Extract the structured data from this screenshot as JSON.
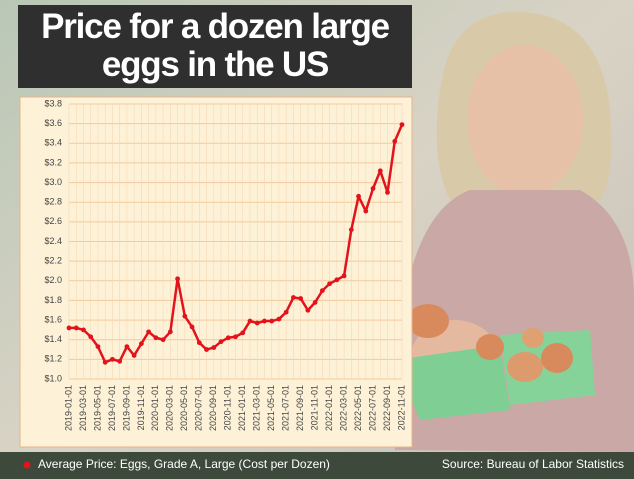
{
  "chart_data": {
    "type": "line",
    "title": "Price for a dozen large eggs in the US",
    "categories": [
      "2019-01-01",
      null,
      "2019-03-01",
      null,
      "2019-05-01",
      null,
      "2019-07-01",
      null,
      "2019-09-01",
      null,
      "2019-11-01",
      null,
      "2020-01-01",
      null,
      "2020-03-01",
      null,
      "2020-05-01",
      null,
      "2020-07-01",
      null,
      "2020-09-01",
      null,
      "2020-11-01",
      null,
      "2021-01-01",
      null,
      "2021-03-01",
      null,
      "2021-05-01",
      null,
      "2021-07-01",
      null,
      "2021-09-01",
      null,
      "2021-11-01",
      null,
      "2022-01-01",
      null,
      "2022-03-01",
      null,
      "2022-05-01",
      null,
      "2022-07-01",
      null,
      "2022-09-01",
      null,
      "2022-11-01"
    ],
    "series": [
      {
        "name": "Average Price: Eggs, Grade A, Large (Cost per Dozen)",
        "color": "#e3131b",
        "values": [
          1.52,
          1.52,
          1.5,
          1.43,
          1.33,
          1.17,
          1.2,
          1.18,
          1.33,
          1.24,
          1.36,
          1.48,
          1.42,
          1.4,
          1.48,
          2.02,
          1.64,
          1.53,
          1.37,
          1.3,
          1.32,
          1.38,
          1.42,
          1.43,
          1.47,
          1.59,
          1.57,
          1.59,
          1.59,
          1.61,
          1.68,
          1.83,
          1.82,
          1.7,
          1.78,
          1.9,
          1.97,
          2.01,
          2.05,
          2.52,
          2.86,
          2.71,
          2.94,
          3.12,
          2.9,
          3.42,
          3.59
        ]
      }
    ],
    "ylim": [
      1.0,
      3.8
    ],
    "yticks": [
      {
        "value": 1.0,
        "label": "$1.0"
      },
      {
        "value": 1.2,
        "label": "$1.2"
      },
      {
        "value": 1.4,
        "label": "$1.4"
      },
      {
        "value": 1.6,
        "label": "$1.6"
      },
      {
        "value": 1.8,
        "label": "$1.8"
      },
      {
        "value": 2.0,
        "label": "$2.0"
      },
      {
        "value": 2.2,
        "label": "$2.2"
      },
      {
        "value": 2.4,
        "label": "$2.4"
      },
      {
        "value": 2.6,
        "label": "$2.6"
      },
      {
        "value": 2.8,
        "label": "$2.8"
      },
      {
        "value": 3.0,
        "label": "$3.0"
      },
      {
        "value": 3.2,
        "label": "$3.2"
      },
      {
        "value": 3.4,
        "label": "$3.4"
      },
      {
        "value": 3.6,
        "label": "$3.6"
      },
      {
        "value": 3.8,
        "label": "$3.8"
      }
    ],
    "grid": true,
    "source": "Source: Bureau of  Labor Statistics"
  }
}
